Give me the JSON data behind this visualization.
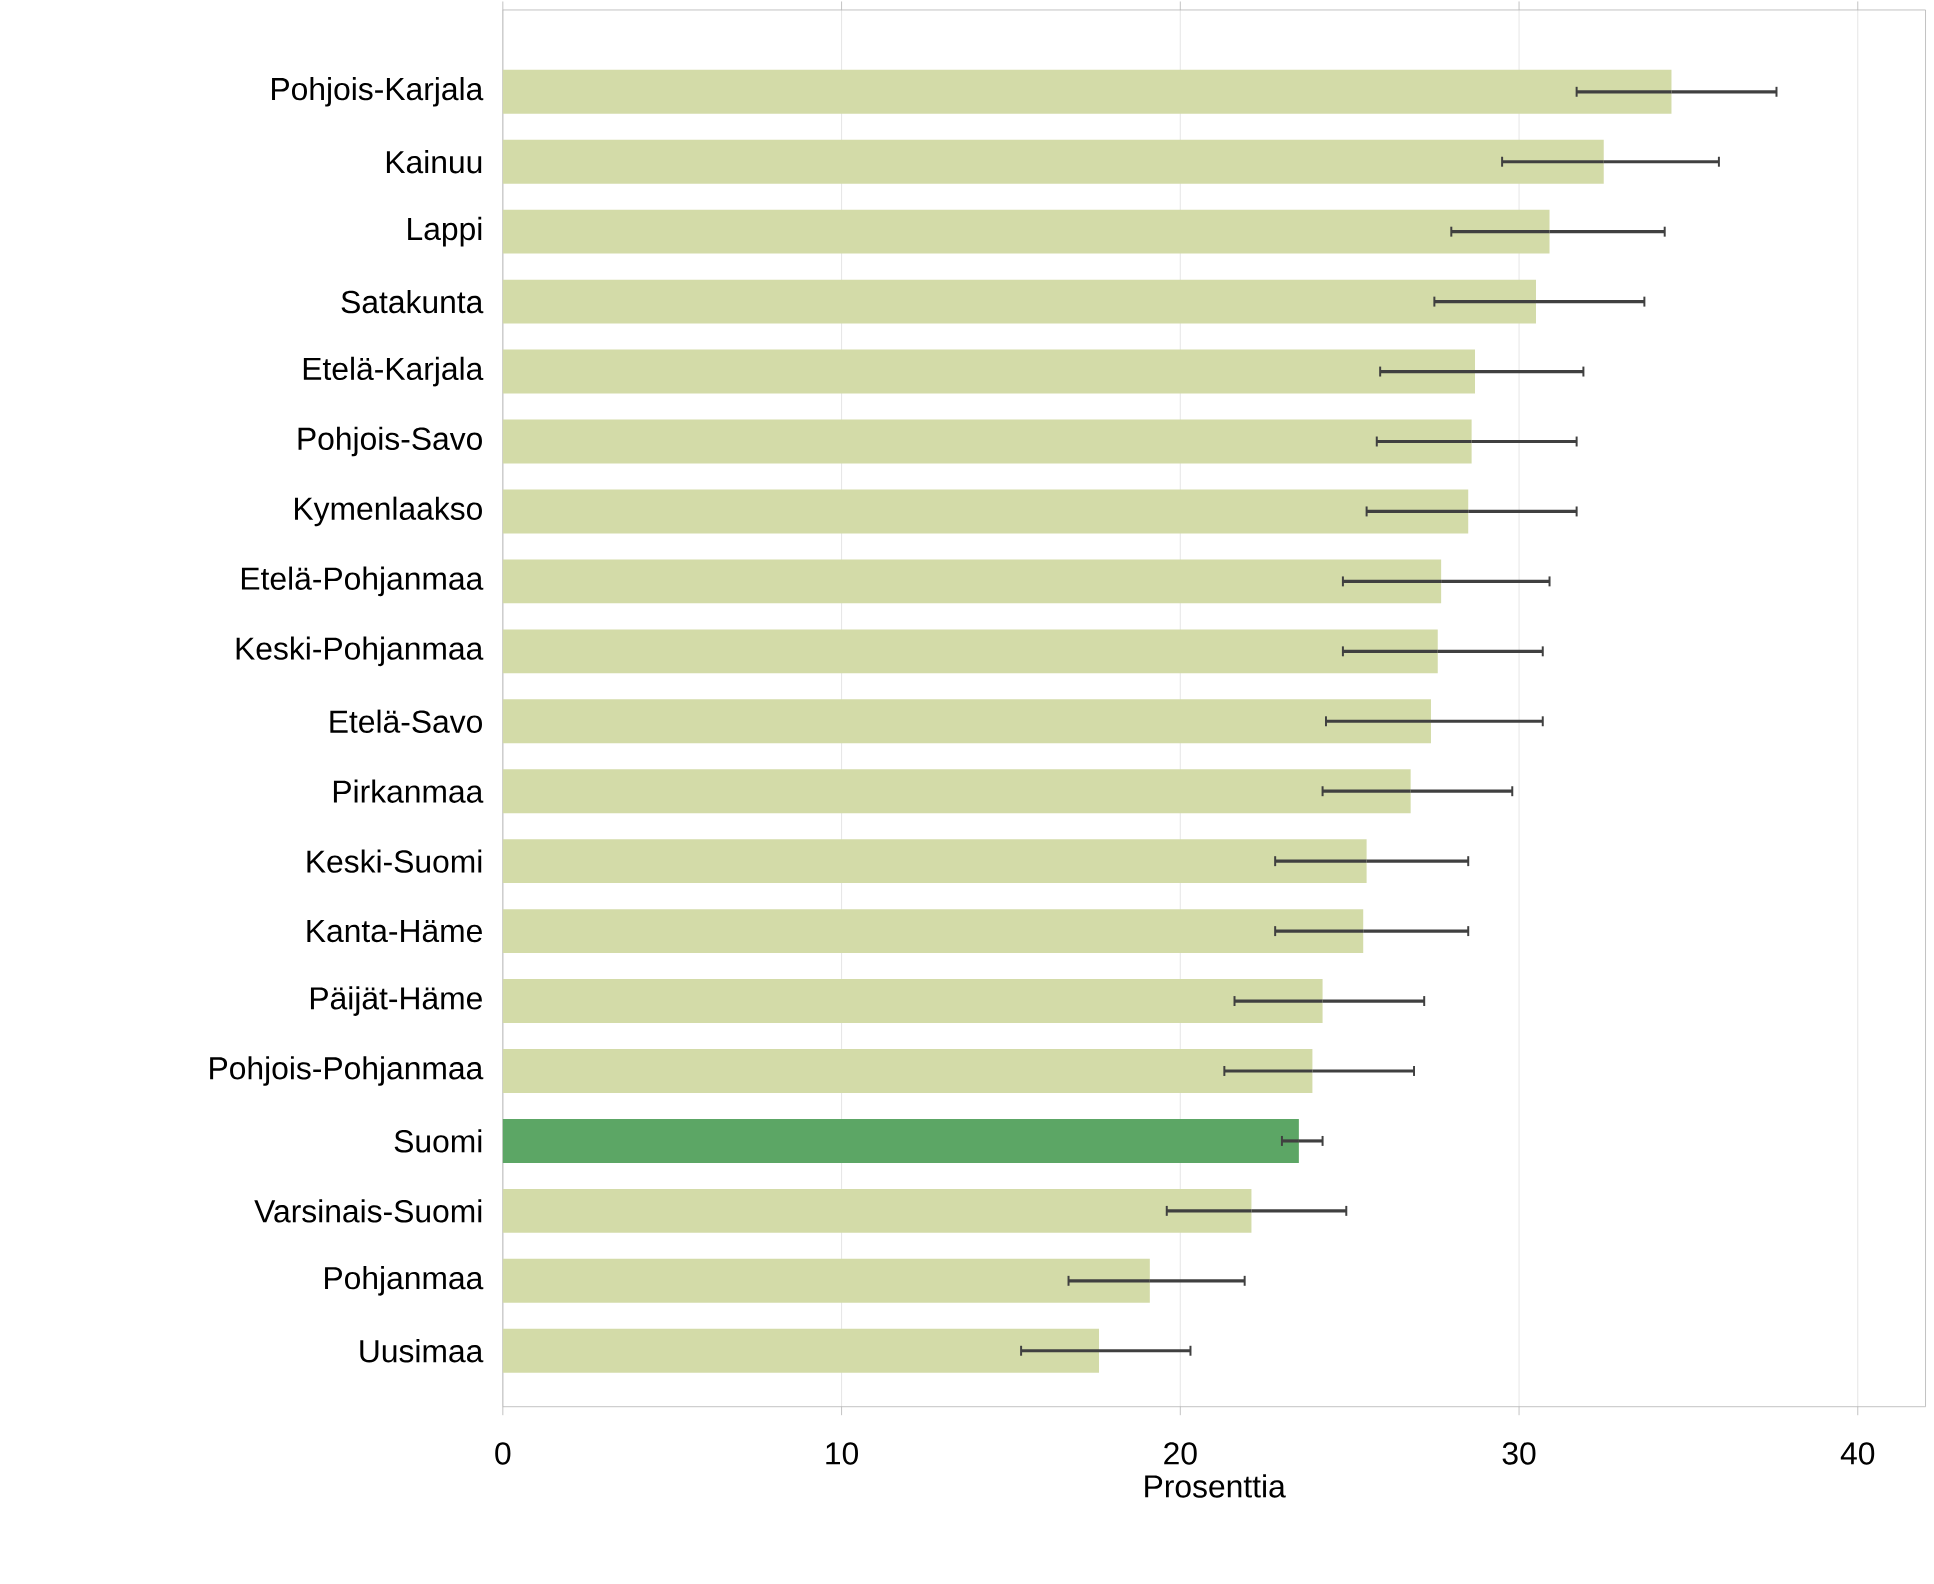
{
  "chart_data": {
    "type": "bar",
    "orientation": "horizontal",
    "xlabel": "Prosenttia",
    "categories": [
      "Pohjois-Karjala",
      "Kainuu",
      "Lappi",
      "Satakunta",
      "Etelä-Karjala",
      "Pohjois-Savo",
      "Kymenlaakso",
      "Etelä-Pohjanmaa",
      "Keski-Pohjanmaa",
      "Etelä-Savo",
      "Pirkanmaa",
      "Keski-Suomi",
      "Kanta-Häme",
      "Päijät-Häme",
      "Pohjois-Pohjanmaa",
      "Suomi",
      "Varsinais-Suomi",
      "Pohjanmaa",
      "Uusimaa"
    ],
    "values": [
      34.5,
      32.5,
      30.9,
      30.5,
      28.7,
      28.6,
      28.5,
      27.7,
      27.6,
      27.4,
      26.8,
      25.5,
      25.4,
      24.2,
      23.9,
      23.5,
      22.1,
      19.1,
      17.6
    ],
    "errors": [
      [
        31.7,
        37.6
      ],
      [
        29.5,
        35.9
      ],
      [
        28.0,
        34.3
      ],
      [
        27.5,
        33.7
      ],
      [
        25.9,
        31.9
      ],
      [
        25.8,
        31.7
      ],
      [
        25.5,
        31.7
      ],
      [
        24.8,
        30.9
      ],
      [
        24.8,
        30.7
      ],
      [
        24.3,
        30.7
      ],
      [
        24.2,
        29.8
      ],
      [
        22.8,
        28.5
      ],
      [
        22.8,
        28.5
      ],
      [
        21.6,
        27.2
      ],
      [
        21.3,
        26.9
      ],
      [
        23.0,
        24.2
      ],
      [
        19.6,
        24.9
      ],
      [
        16.7,
        21.9
      ],
      [
        15.3,
        20.3
      ]
    ],
    "colors": [
      "#d3dba8",
      "#d3dba8",
      "#d3dba8",
      "#d3dba8",
      "#d3dba8",
      "#d3dba8",
      "#d3dba8",
      "#d3dba8",
      "#d3dba8",
      "#d3dba8",
      "#d3dba8",
      "#d3dba8",
      "#d3dba8",
      "#d3dba8",
      "#d3dba8",
      "#5ca665",
      "#d3dba8",
      "#d3dba8",
      "#d3dba8"
    ],
    "xlim": [
      0,
      42
    ],
    "xticks": [
      0,
      10,
      20,
      30,
      40
    ],
    "grid": "x"
  }
}
